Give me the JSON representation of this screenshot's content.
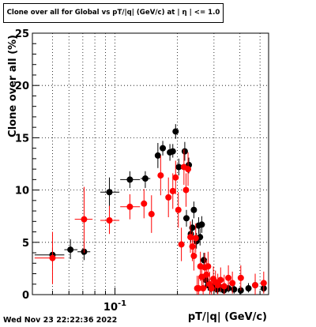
{
  "chart_data": {
    "type": "scatter",
    "title": "Clone  over all for Global vs pT/|q| (GeV/c) at | η | <= 1.0",
    "xlabel": "pT/|q| (GeV/c)",
    "ylabel": "Clone  over all (%)",
    "x_scale": "log",
    "xlim": [
      0.04,
      0.55
    ],
    "ylim": [
      0,
      25
    ],
    "y_ticks": [
      0,
      5,
      10,
      15,
      20,
      25
    ],
    "x_tick_labels": [
      {
        "value": 0.1,
        "base": "10",
        "exponent": "-1"
      }
    ],
    "grid": true,
    "series": [
      {
        "color": "#000000",
        "points": [
          {
            "x": 0.05,
            "y": 3.8,
            "xlo": 0.041,
            "xhi": 0.057,
            "ylo": 3.1,
            "yhi": 4.5
          },
          {
            "x": 0.061,
            "y": 4.3,
            "xlo": 0.057,
            "xhi": 0.066,
            "ylo": 3.4,
            "yhi": 5.3
          },
          {
            "x": 0.071,
            "y": 4.1,
            "xlo": 0.066,
            "xhi": 0.076,
            "ylo": 3.3,
            "yhi": 5.0
          },
          {
            "x": 0.094,
            "y": 9.8,
            "xlo": 0.085,
            "xhi": 0.105,
            "ylo": 8.4,
            "yhi": 11.2
          },
          {
            "x": 0.118,
            "y": 11.0,
            "xlo": 0.106,
            "xhi": 0.132,
            "ylo": 10.2,
            "yhi": 11.8
          },
          {
            "x": 0.14,
            "y": 11.1,
            "xlo": 0.133,
            "xhi": 0.148,
            "ylo": 10.2,
            "yhi": 11.8
          },
          {
            "x": 0.161,
            "y": 13.3,
            "xlo": 0.158,
            "xhi": 0.164,
            "ylo": 12.1,
            "yhi": 14.5
          },
          {
            "x": 0.17,
            "y": 14.0,
            "xlo": 0.166,
            "xhi": 0.173,
            "ylo": 13.3,
            "yhi": 14.7
          },
          {
            "x": 0.184,
            "y": 13.6,
            "xlo": 0.181,
            "xhi": 0.188,
            "ylo": 12.8,
            "yhi": 14.4
          },
          {
            "x": 0.19,
            "y": 13.7,
            "xlo": 0.188,
            "xhi": 0.193,
            "ylo": 13.1,
            "yhi": 14.4
          },
          {
            "x": 0.196,
            "y": 15.6,
            "xlo": 0.193,
            "xhi": 0.2,
            "ylo": 14.9,
            "yhi": 16.3
          },
          {
            "x": 0.203,
            "y": 12.2,
            "xlo": 0.2,
            "xhi": 0.206,
            "ylo": 11.4,
            "yhi": 13.0
          },
          {
            "x": 0.217,
            "y": 13.7,
            "xlo": 0.214,
            "xhi": 0.22,
            "ylo": 12.8,
            "yhi": 14.6
          },
          {
            "x": 0.221,
            "y": 7.3,
            "xlo": 0.219,
            "xhi": 0.223,
            "ylo": 6.5,
            "yhi": 8.1
          },
          {
            "x": 0.227,
            "y": 12.4,
            "xlo": 0.225,
            "xhi": 0.23,
            "ylo": 11.6,
            "yhi": 13.1
          },
          {
            "x": 0.232,
            "y": 5.8,
            "xlo": 0.23,
            "xhi": 0.234,
            "ylo": 5.0,
            "yhi": 6.6
          },
          {
            "x": 0.236,
            "y": 6.4,
            "xlo": 0.234,
            "xhi": 0.238,
            "ylo": 5.6,
            "yhi": 7.2
          },
          {
            "x": 0.24,
            "y": 8.1,
            "xlo": 0.238,
            "xhi": 0.243,
            "ylo": 7.3,
            "yhi": 8.9
          },
          {
            "x": 0.247,
            "y": 5.1,
            "xlo": 0.245,
            "xhi": 0.249,
            "ylo": 4.4,
            "yhi": 5.9
          },
          {
            "x": 0.253,
            "y": 6.6,
            "xlo": 0.251,
            "xhi": 0.256,
            "ylo": 5.8,
            "yhi": 7.4
          },
          {
            "x": 0.257,
            "y": 5.5,
            "xlo": 0.256,
            "xhi": 0.259,
            "ylo": 4.7,
            "yhi": 6.3
          },
          {
            "x": 0.262,
            "y": 6.7,
            "xlo": 0.26,
            "xhi": 0.264,
            "ylo": 5.9,
            "yhi": 7.5
          },
          {
            "x": 0.268,
            "y": 3.3,
            "xlo": 0.266,
            "xhi": 0.27,
            "ylo": 2.6,
            "yhi": 4.0
          },
          {
            "x": 0.274,
            "y": 1.4,
            "xlo": 0.272,
            "xhi": 0.276,
            "ylo": 0.9,
            "yhi": 2.0
          },
          {
            "x": 0.281,
            "y": 0.9,
            "xlo": 0.279,
            "xhi": 0.283,
            "ylo": 0.4,
            "yhi": 1.5
          },
          {
            "x": 0.29,
            "y": 0.6,
            "xlo": 0.287,
            "xhi": 0.293,
            "ylo": 0.2,
            "yhi": 1.1
          },
          {
            "x": 0.3,
            "y": 0.8,
            "xlo": 0.296,
            "xhi": 0.303,
            "ylo": 0.3,
            "yhi": 1.3
          },
          {
            "x": 0.311,
            "y": 0.5,
            "xlo": 0.307,
            "xhi": 0.315,
            "ylo": 0.1,
            "yhi": 1.0
          },
          {
            "x": 0.322,
            "y": 0.7,
            "xlo": 0.318,
            "xhi": 0.326,
            "ylo": 0.2,
            "yhi": 1.2
          },
          {
            "x": 0.335,
            "y": 0.4,
            "xlo": 0.331,
            "xhi": 0.34,
            "ylo": 0.1,
            "yhi": 0.8
          },
          {
            "x": 0.352,
            "y": 0.6,
            "xlo": 0.347,
            "xhi": 0.357,
            "ylo": 0.2,
            "yhi": 1.1
          },
          {
            "x": 0.375,
            "y": 0.5,
            "xlo": 0.369,
            "xhi": 0.381,
            "ylo": 0.1,
            "yhi": 0.9
          },
          {
            "x": 0.404,
            "y": 0.4,
            "xlo": 0.397,
            "xhi": 0.411,
            "ylo": 0.0,
            "yhi": 0.8
          },
          {
            "x": 0.44,
            "y": 0.6,
            "xlo": 0.432,
            "xhi": 0.448,
            "ylo": 0.2,
            "yhi": 1.1
          },
          {
            "x": 0.474,
            "y": 0.9,
            "xlo": 0.466,
            "xhi": 0.482,
            "ylo": 0.4,
            "yhi": 1.4
          },
          {
            "x": 0.521,
            "y": 0.6,
            "xlo": 0.51,
            "xhi": 0.533,
            "ylo": 0.2,
            "yhi": 1.1
          }
        ]
      },
      {
        "color": "#ff0000",
        "points": [
          {
            "x": 0.05,
            "y": 3.5,
            "xlo": 0.041,
            "xhi": 0.057,
            "ylo": 1.0,
            "yhi": 6.0
          },
          {
            "x": 0.071,
            "y": 7.2,
            "xlo": 0.064,
            "xhi": 0.078,
            "ylo": 4.0,
            "yhi": 10.3
          },
          {
            "x": 0.094,
            "y": 7.1,
            "xlo": 0.085,
            "xhi": 0.105,
            "ylo": 5.8,
            "yhi": 8.5
          },
          {
            "x": 0.118,
            "y": 8.4,
            "xlo": 0.106,
            "xhi": 0.132,
            "ylo": 7.2,
            "yhi": 9.6
          },
          {
            "x": 0.138,
            "y": 8.7,
            "xlo": 0.134,
            "xhi": 0.142,
            "ylo": 7.3,
            "yhi": 10.1
          },
          {
            "x": 0.15,
            "y": 7.7,
            "xlo": 0.146,
            "xhi": 0.155,
            "ylo": 5.9,
            "yhi": 9.5
          },
          {
            "x": 0.166,
            "y": 11.4,
            "xlo": 0.162,
            "xhi": 0.171,
            "ylo": 9.5,
            "yhi": 13.3
          },
          {
            "x": 0.181,
            "y": 9.3,
            "xlo": 0.177,
            "xhi": 0.185,
            "ylo": 7.4,
            "yhi": 11.2
          },
          {
            "x": 0.19,
            "y": 9.9,
            "xlo": 0.187,
            "xhi": 0.193,
            "ylo": 8.2,
            "yhi": 11.6
          },
          {
            "x": 0.196,
            "y": 11.2,
            "xlo": 0.193,
            "xhi": 0.199,
            "ylo": 9.6,
            "yhi": 12.8
          },
          {
            "x": 0.202,
            "y": 8.1,
            "xlo": 0.199,
            "xhi": 0.205,
            "ylo": 6.4,
            "yhi": 9.8
          },
          {
            "x": 0.209,
            "y": 4.8,
            "xlo": 0.206,
            "xhi": 0.212,
            "ylo": 3.2,
            "yhi": 6.4
          },
          {
            "x": 0.215,
            "y": 12.2,
            "xlo": 0.212,
            "xhi": 0.218,
            "ylo": 10.5,
            "yhi": 13.9
          },
          {
            "x": 0.22,
            "y": 10.0,
            "xlo": 0.218,
            "xhi": 0.223,
            "ylo": 8.4,
            "yhi": 11.6
          },
          {
            "x": 0.225,
            "y": 12.0,
            "xlo": 0.223,
            "xhi": 0.228,
            "ylo": 10.4,
            "yhi": 13.6
          },
          {
            "x": 0.231,
            "y": 5.5,
            "xlo": 0.229,
            "xhi": 0.233,
            "ylo": 4.0,
            "yhi": 7.0
          },
          {
            "x": 0.236,
            "y": 4.6,
            "xlo": 0.234,
            "xhi": 0.238,
            "ylo": 3.2,
            "yhi": 6.0
          },
          {
            "x": 0.24,
            "y": 3.7,
            "xlo": 0.238,
            "xhi": 0.242,
            "ylo": 2.3,
            "yhi": 5.1
          },
          {
            "x": 0.245,
            "y": 5.4,
            "xlo": 0.243,
            "xhi": 0.247,
            "ylo": 4.0,
            "yhi": 6.8
          },
          {
            "x": 0.249,
            "y": 0.6,
            "xlo": 0.247,
            "xhi": 0.251,
            "ylo": 0.0,
            "yhi": 1.8
          },
          {
            "x": 0.253,
            "y": 0.6,
            "xlo": 0.251,
            "xhi": 0.255,
            "ylo": 0.0,
            "yhi": 1.8
          },
          {
            "x": 0.258,
            "y": 2.7,
            "xlo": 0.256,
            "xhi": 0.26,
            "ylo": 1.3,
            "yhi": 4.1
          },
          {
            "x": 0.262,
            "y": 1.7,
            "xlo": 0.26,
            "xhi": 0.264,
            "ylo": 0.5,
            "yhi": 3.0
          },
          {
            "x": 0.266,
            "y": 0.6,
            "xlo": 0.264,
            "xhi": 0.268,
            "ylo": 0.0,
            "yhi": 1.8
          },
          {
            "x": 0.271,
            "y": 2.6,
            "xlo": 0.269,
            "xhi": 0.273,
            "ylo": 1.2,
            "yhi": 4.0
          },
          {
            "x": 0.276,
            "y": 1.9,
            "xlo": 0.274,
            "xhi": 0.278,
            "ylo": 0.6,
            "yhi": 3.3
          },
          {
            "x": 0.281,
            "y": 2.7,
            "xlo": 0.279,
            "xhi": 0.283,
            "ylo": 1.3,
            "yhi": 4.1
          },
          {
            "x": 0.286,
            "y": 1.0,
            "xlo": 0.284,
            "xhi": 0.288,
            "ylo": 0.0,
            "yhi": 2.2
          },
          {
            "x": 0.292,
            "y": 0.6,
            "xlo": 0.29,
            "xhi": 0.294,
            "ylo": 0.0,
            "yhi": 1.7
          },
          {
            "x": 0.298,
            "y": 1.5,
            "xlo": 0.295,
            "xhi": 0.301,
            "ylo": 0.4,
            "yhi": 2.7
          },
          {
            "x": 0.305,
            "y": 1.2,
            "xlo": 0.302,
            "xhi": 0.308,
            "ylo": 0.2,
            "yhi": 2.3
          },
          {
            "x": 0.313,
            "y": 0.9,
            "xlo": 0.31,
            "xhi": 0.316,
            "ylo": 0.0,
            "yhi": 2.0
          },
          {
            "x": 0.323,
            "y": 1.4,
            "xlo": 0.32,
            "xhi": 0.327,
            "ylo": 0.3,
            "yhi": 2.6
          },
          {
            "x": 0.336,
            "y": 0.8,
            "xlo": 0.332,
            "xhi": 0.34,
            "ylo": 0.0,
            "yhi": 1.9
          },
          {
            "x": 0.352,
            "y": 1.6,
            "xlo": 0.347,
            "xhi": 0.357,
            "ylo": 0.4,
            "yhi": 2.8
          },
          {
            "x": 0.368,
            "y": 1.1,
            "xlo": 0.363,
            "xhi": 0.373,
            "ylo": 0.1,
            "yhi": 2.2
          },
          {
            "x": 0.404,
            "y": 1.6,
            "xlo": 0.397,
            "xhi": 0.411,
            "ylo": 0.4,
            "yhi": 2.8
          },
          {
            "x": 0.474,
            "y": 0.9,
            "xlo": 0.466,
            "xhi": 0.482,
            "ylo": 0.0,
            "yhi": 2.0
          },
          {
            "x": 0.521,
            "y": 1.1,
            "xlo": 0.51,
            "xhi": 0.533,
            "ylo": 0.1,
            "yhi": 2.2
          }
        ]
      }
    ]
  },
  "footer": {
    "datestamp": "Wed Nov 23 22:22:36 2022"
  }
}
